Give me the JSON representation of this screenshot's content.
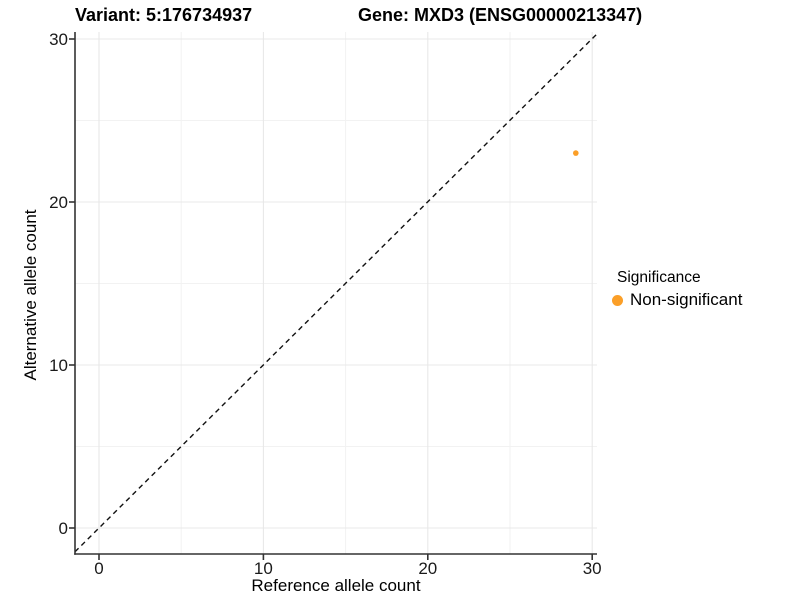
{
  "chart_data": {
    "type": "scatter",
    "title_left": "Variant: 5:176734937",
    "title_right": "Gene: MXD3 (ENSG00000213347)",
    "xlabel": "Reference allele count",
    "ylabel": "Alternative allele count",
    "xlim": [
      -1.5,
      30.5
    ],
    "ylim": [
      -1.5,
      30.5
    ],
    "x_ticks": [
      0,
      10,
      20,
      30
    ],
    "y_ticks": [
      0,
      10,
      20,
      30
    ],
    "grid": "major gridlines at ticks plus minor gridlines at 5/15/25, very light gray, white background",
    "legend": {
      "title": "Significance",
      "position": "right"
    },
    "series": [
      {
        "name": "Non-significant",
        "color": "#FB9F28",
        "marker": "circle",
        "points": [
          {
            "x": 29,
            "y": 23
          }
        ]
      }
    ],
    "reference_line": {
      "equation": "y = x",
      "style": "dashed",
      "color": "#111111"
    }
  }
}
